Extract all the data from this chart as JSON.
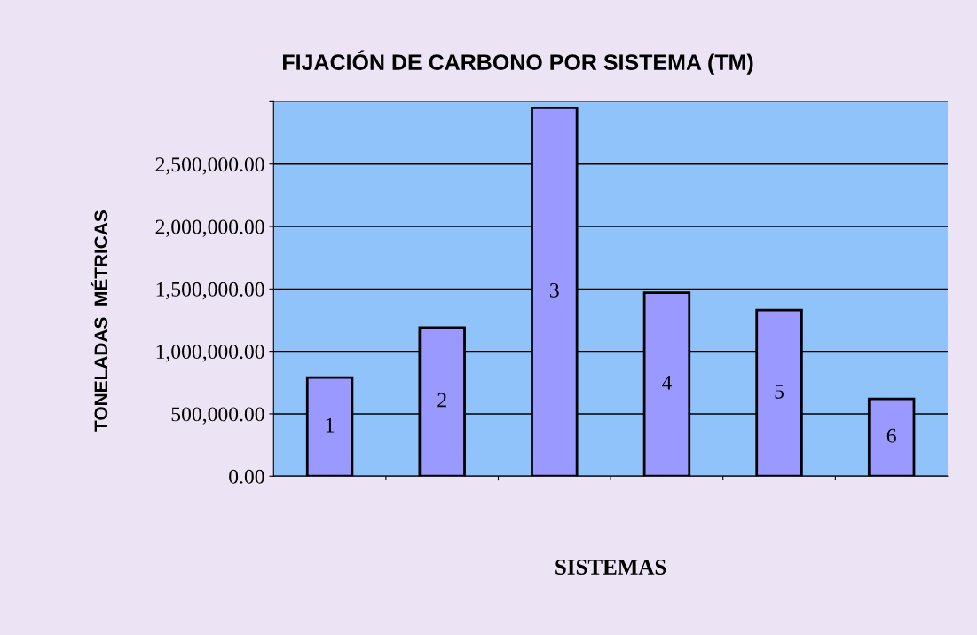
{
  "chart_data": {
    "type": "bar",
    "title": "FIJACIÓN DE CARBONO POR SISTEMA (TM)",
    "xlabel": "SISTEMAS",
    "ylabel": "TONELADAS  MÉTRICAS",
    "categories": [
      "1",
      "2",
      "3",
      "4",
      "5",
      "6"
    ],
    "values": [
      790000,
      1190000,
      2950000,
      1470000,
      1330000,
      620000
    ],
    "color": "#9999ff",
    "ylim": [
      0,
      3000000
    ],
    "yticks": [
      {
        "value": 0,
        "label": "0.00"
      },
      {
        "value": 500000,
        "label": "500,000.00"
      },
      {
        "value": 1000000,
        "label": "1,000,000.00"
      },
      {
        "value": 1500000,
        "label": "1,500,000.00"
      },
      {
        "value": 2000000,
        "label": "2,000,000.00"
      },
      {
        "value": 2500000,
        "label": "2,500,000.00"
      },
      {
        "value": 3000000,
        "label": null
      }
    ],
    "grid": "y"
  }
}
